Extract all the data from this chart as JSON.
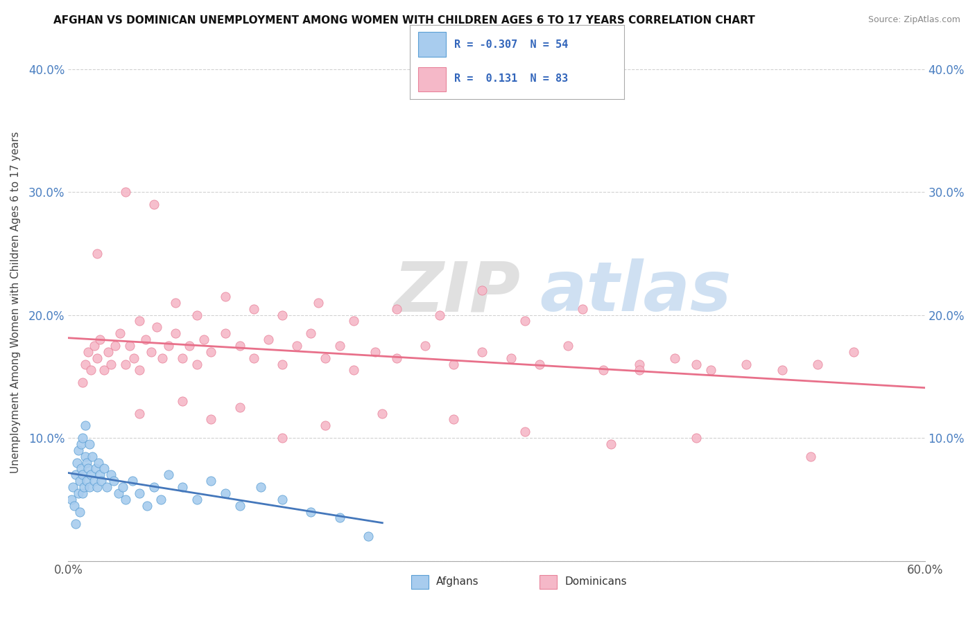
{
  "title": "AFGHAN VS DOMINICAN UNEMPLOYMENT AMONG WOMEN WITH CHILDREN AGES 6 TO 17 YEARS CORRELATION CHART",
  "source": "Source: ZipAtlas.com",
  "ylabel": "Unemployment Among Women with Children Ages 6 to 17 years",
  "xlim": [
    0.0,
    0.6
  ],
  "ylim": [
    0.0,
    0.42
  ],
  "xticks": [
    0.0,
    0.1,
    0.2,
    0.3,
    0.4,
    0.5,
    0.6
  ],
  "xticklabels": [
    "0.0%",
    "",
    "",
    "",
    "",
    "",
    "60.0%"
  ],
  "yticks": [
    0.0,
    0.1,
    0.2,
    0.3,
    0.4
  ],
  "yticklabels": [
    "",
    "10.0%",
    "20.0%",
    "30.0%",
    "40.0%"
  ],
  "afghan_color": "#a8ccee",
  "dominican_color": "#f5b8c8",
  "afghan_edge_color": "#5b9fd4",
  "dominican_edge_color": "#e8829a",
  "afghan_line_color": "#4477bb",
  "dominican_line_color": "#e8708a",
  "legend_afghan_R": -0.307,
  "legend_afghan_N": 54,
  "legend_dominican_R": 0.131,
  "legend_dominican_N": 83,
  "watermark_zip": "ZIP",
  "watermark_atlas": "atlas",
  "afghans_label": "Afghans",
  "dominicans_label": "Dominicans",
  "background_color": "#ffffff",
  "afghans_x": [
    0.002,
    0.003,
    0.004,
    0.005,
    0.005,
    0.006,
    0.007,
    0.007,
    0.008,
    0.008,
    0.009,
    0.009,
    0.01,
    0.01,
    0.01,
    0.011,
    0.012,
    0.012,
    0.013,
    0.013,
    0.014,
    0.015,
    0.015,
    0.016,
    0.017,
    0.018,
    0.019,
    0.02,
    0.021,
    0.022,
    0.023,
    0.025,
    0.027,
    0.03,
    0.032,
    0.035,
    0.038,
    0.04,
    0.045,
    0.05,
    0.055,
    0.06,
    0.065,
    0.07,
    0.08,
    0.09,
    0.1,
    0.11,
    0.12,
    0.135,
    0.15,
    0.17,
    0.19,
    0.21
  ],
  "afghans_y": [
    0.05,
    0.06,
    0.045,
    0.07,
    0.03,
    0.08,
    0.055,
    0.09,
    0.04,
    0.065,
    0.075,
    0.095,
    0.055,
    0.07,
    0.1,
    0.06,
    0.085,
    0.11,
    0.065,
    0.08,
    0.075,
    0.06,
    0.095,
    0.07,
    0.085,
    0.065,
    0.075,
    0.06,
    0.08,
    0.07,
    0.065,
    0.075,
    0.06,
    0.07,
    0.065,
    0.055,
    0.06,
    0.05,
    0.065,
    0.055,
    0.045,
    0.06,
    0.05,
    0.07,
    0.06,
    0.05,
    0.065,
    0.055,
    0.045,
    0.06,
    0.05,
    0.04,
    0.035,
    0.02
  ],
  "dominicans_x": [
    0.01,
    0.012,
    0.014,
    0.016,
    0.018,
    0.02,
    0.022,
    0.025,
    0.028,
    0.03,
    0.033,
    0.036,
    0.04,
    0.043,
    0.046,
    0.05,
    0.054,
    0.058,
    0.062,
    0.066,
    0.07,
    0.075,
    0.08,
    0.085,
    0.09,
    0.095,
    0.1,
    0.11,
    0.12,
    0.13,
    0.14,
    0.15,
    0.16,
    0.17,
    0.18,
    0.19,
    0.2,
    0.215,
    0.23,
    0.25,
    0.27,
    0.29,
    0.31,
    0.33,
    0.35,
    0.375,
    0.4,
    0.425,
    0.45,
    0.475,
    0.5,
    0.525,
    0.55,
    0.05,
    0.075,
    0.09,
    0.11,
    0.13,
    0.15,
    0.175,
    0.2,
    0.23,
    0.26,
    0.29,
    0.32,
    0.36,
    0.4,
    0.44,
    0.05,
    0.08,
    0.1,
    0.12,
    0.15,
    0.18,
    0.22,
    0.27,
    0.32,
    0.38,
    0.44,
    0.52,
    0.02,
    0.04,
    0.06
  ],
  "dominicans_y": [
    0.145,
    0.16,
    0.17,
    0.155,
    0.175,
    0.165,
    0.18,
    0.155,
    0.17,
    0.16,
    0.175,
    0.185,
    0.16,
    0.175,
    0.165,
    0.155,
    0.18,
    0.17,
    0.19,
    0.165,
    0.175,
    0.185,
    0.165,
    0.175,
    0.16,
    0.18,
    0.17,
    0.185,
    0.175,
    0.165,
    0.18,
    0.16,
    0.175,
    0.185,
    0.165,
    0.175,
    0.155,
    0.17,
    0.165,
    0.175,
    0.16,
    0.17,
    0.165,
    0.16,
    0.175,
    0.155,
    0.16,
    0.165,
    0.155,
    0.16,
    0.155,
    0.16,
    0.17,
    0.195,
    0.21,
    0.2,
    0.215,
    0.205,
    0.2,
    0.21,
    0.195,
    0.205,
    0.2,
    0.22,
    0.195,
    0.205,
    0.155,
    0.16,
    0.12,
    0.13,
    0.115,
    0.125,
    0.1,
    0.11,
    0.12,
    0.115,
    0.105,
    0.095,
    0.1,
    0.085,
    0.25,
    0.3,
    0.29
  ]
}
